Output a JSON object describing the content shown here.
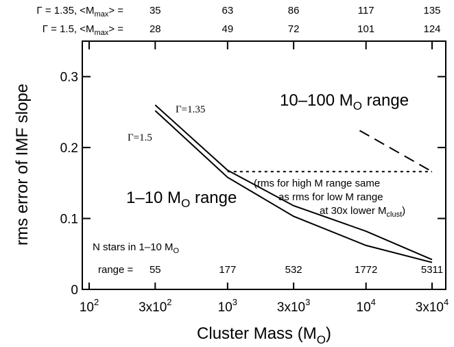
{
  "chart_data": {
    "type": "line",
    "xscale": "log",
    "xlim": [
      100,
      30000
    ],
    "ylim": [
      0,
      0.35
    ],
    "xlabel": "Cluster Mass (M",
    "xlabel_sub": "O",
    "xlabel_end": ")",
    "ylabel": "rms error of IMF slope",
    "x_ticks": [
      {
        "x": 100,
        "base": "10",
        "sup": "2"
      },
      {
        "x": 300,
        "base": "3x10",
        "sup": "2"
      },
      {
        "x": 1000,
        "base": "10",
        "sup": "3"
      },
      {
        "x": 3000,
        "base": "3x10",
        "sup": "3"
      },
      {
        "x": 10000,
        "base": "10",
        "sup": "4"
      },
      {
        "x": 30000,
        "base": "3x10",
        "sup": "4"
      }
    ],
    "y_ticks": [
      {
        "y": 0,
        "label": "0"
      },
      {
        "y": 0.1,
        "label": "0.1"
      },
      {
        "y": 0.2,
        "label": "0.2"
      },
      {
        "y": 0.3,
        "label": "0.3"
      }
    ],
    "series": [
      {
        "name": "Γ=1.35",
        "x": [
          300,
          1000,
          3000,
          10000,
          30000
        ],
        "y": [
          0.26,
          0.168,
          0.118,
          0.082,
          0.042
        ]
      },
      {
        "name": "Γ=1.5",
        "x": [
          300,
          1000,
          3000,
          10000,
          30000
        ],
        "y": [
          0.252,
          0.158,
          0.103,
          0.062,
          0.038
        ]
      }
    ],
    "dashed_line": {
      "x": [
        9000,
        30000
      ],
      "y": [
        0.224,
        0.166
      ]
    },
    "dotted_line": {
      "x": [
        1000,
        30000
      ],
      "y": [
        0.166,
        0.166
      ]
    },
    "series_labels": {
      "g135": "Γ=1.35",
      "g15": "Γ=1.5"
    },
    "annotations": {
      "high_range_pre": "10–100 M",
      "high_range_sub": "O",
      "high_range_post": " range",
      "low_range_pre": "1–10 M",
      "low_range_sub": "O",
      "low_range_post": " range",
      "note_line1": "(rms for high M range same",
      "note_line2": "as rms for low M range",
      "note_line3_pre": "at 30x lower M",
      "note_line3_sub": "clust",
      "note_line3_post": ")"
    },
    "nstars": {
      "title_pre": "N stars in 1–10 M",
      "title_sub": "O",
      "prefix": "range = ",
      "values": [
        {
          "x": 300,
          "n": "55"
        },
        {
          "x": 1000,
          "n": "177"
        },
        {
          "x": 3000,
          "n": "532"
        },
        {
          "x": 10000,
          "n": "1772"
        },
        {
          "x": 30000,
          "n": "5311"
        }
      ]
    },
    "top_rows": [
      {
        "label_pre": "Γ = 1.35, <M",
        "label_sub": "max",
        "label_post": "> =",
        "values": [
          "35",
          "63",
          "86",
          "117",
          "135"
        ]
      },
      {
        "label_pre": "Γ = 1.5, <M",
        "label_sub": "max",
        "label_post": "> =",
        "values": [
          "28",
          "49",
          "72",
          "101",
          "124"
        ]
      }
    ]
  }
}
